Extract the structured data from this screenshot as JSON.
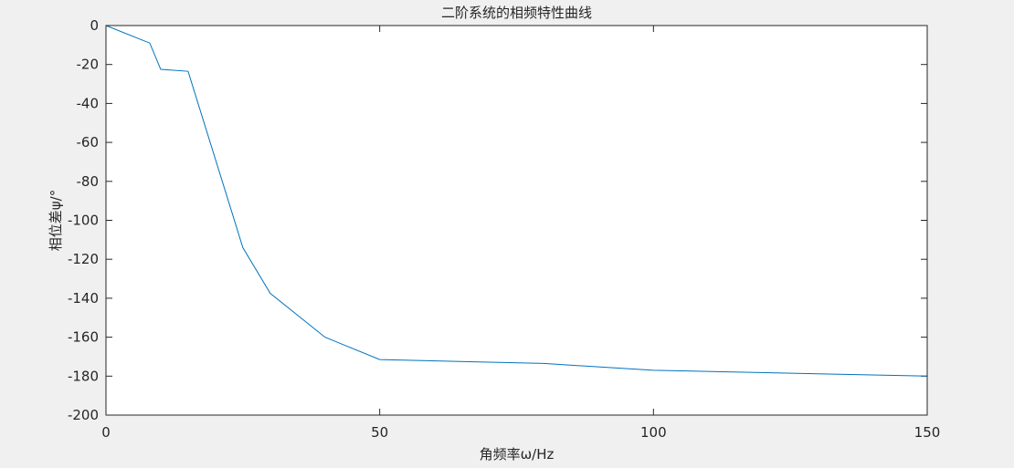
{
  "chart_data": {
    "type": "line",
    "title": "二阶系统的相频特性曲线",
    "xlabel": "角频率ω/Hz",
    "ylabel": "相位差ψ/°",
    "xlim": [
      0,
      150
    ],
    "ylim": [
      -200,
      0
    ],
    "xticks": [
      0,
      50,
      100,
      150
    ],
    "yticks": [
      0,
      -20,
      -40,
      -60,
      -80,
      -100,
      -120,
      -140,
      -160,
      -180,
      -200
    ],
    "grid": false,
    "series": [
      {
        "color": "#0072bd",
        "x": [
          0,
          8,
          10,
          15,
          25,
          30,
          40,
          50,
          80,
          100,
          150
        ],
        "y": [
          0,
          -9,
          -22.5,
          -23.5,
          -114,
          -137.5,
          -160,
          -171.5,
          -173.5,
          -177,
          -180
        ]
      }
    ]
  }
}
